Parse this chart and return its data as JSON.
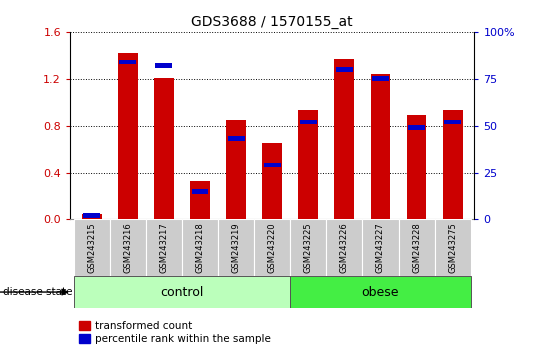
{
  "title": "GDS3688 / 1570155_at",
  "samples": [
    "GSM243215",
    "GSM243216",
    "GSM243217",
    "GSM243218",
    "GSM243219",
    "GSM243220",
    "GSM243225",
    "GSM243226",
    "GSM243227",
    "GSM243228",
    "GSM243275"
  ],
  "red_values": [
    0.05,
    1.42,
    1.21,
    0.33,
    0.85,
    0.65,
    0.93,
    1.37,
    1.24,
    0.89,
    0.93
  ],
  "blue_values_pct": [
    2,
    84,
    82,
    15,
    43,
    29,
    52,
    80,
    75,
    49,
    52
  ],
  "ylim_left": [
    0,
    1.6
  ],
  "ylim_right": [
    0,
    100
  ],
  "yticks_left": [
    0,
    0.4,
    0.8,
    1.2,
    1.6
  ],
  "yticks_right": [
    0,
    25,
    50,
    75,
    100
  ],
  "ytick_labels_right": [
    "0",
    "25",
    "50",
    "75",
    "100%"
  ],
  "n_control": 6,
  "n_obese": 5,
  "control_color": "#bbffbb",
  "obese_color": "#44ee44",
  "bar_color_red": "#cc0000",
  "bar_color_blue": "#0000cc",
  "bar_width": 0.55,
  "tick_label_area_color": "#cccccc",
  "disease_state_label": "disease state",
  "group_label_control": "control",
  "group_label_obese": "obese",
  "legend_red_label": "transformed count",
  "legend_blue_label": "percentile rank within the sample"
}
